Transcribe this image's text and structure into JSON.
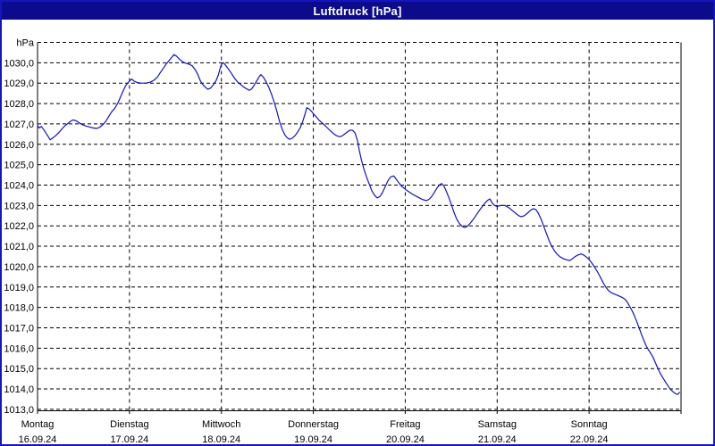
{
  "window": {
    "title": "Luftdruck [hPa]"
  },
  "colors": {
    "window_border": "#1515c0",
    "titlebar_bg": "#0b0b8b",
    "titlebar_text": "#ffffff",
    "plot_bg": "#ffffff",
    "grid": "#000000",
    "axis": "#000000",
    "label_text": "#000000",
    "line": "#1212c4"
  },
  "chart_data": {
    "type": "line",
    "title": "Luftdruck [hPa]",
    "grid": true,
    "legend": "none",
    "y_axis": {
      "unit_label": "hPa",
      "min": 1013,
      "max": 1031,
      "tick_step": 1,
      "tick_labels": [
        "1030,0",
        "1029,0",
        "1028,0",
        "1027,0",
        "1026,0",
        "1025,0",
        "1024,0",
        "1023,0",
        "1022,0",
        "1021,0",
        "1020,0",
        "1019,0",
        "1018,0",
        "1017,0",
        "1016,0",
        "1015,0",
        "1014,0",
        "1013,0"
      ]
    },
    "x_axis": {
      "hours_span": 168,
      "days": [
        {
          "name": "Montag",
          "date": "16.09.24"
        },
        {
          "name": "Dienstag",
          "date": "17.09.24"
        },
        {
          "name": "Mittwoch",
          "date": "18.09.24"
        },
        {
          "name": "Donnerstag",
          "date": "19.09.24"
        },
        {
          "name": "Freitag",
          "date": "20.09.24"
        },
        {
          "name": "Samstag",
          "date": "21.09.24"
        },
        {
          "name": "Sonntag",
          "date": "22.09.24"
        }
      ]
    },
    "series": [
      {
        "name": "Luftdruck",
        "unit": "hPa",
        "points": [
          [
            0,
            1026.92
          ],
          [
            0.5,
            1026.8
          ],
          [
            1,
            1026.88
          ],
          [
            1.7,
            1026.7
          ],
          [
            2.3,
            1026.52
          ],
          [
            2.9,
            1026.35
          ],
          [
            3.3,
            1026.22
          ],
          [
            3.9,
            1026.3
          ],
          [
            4.7,
            1026.42
          ],
          [
            5.5,
            1026.56
          ],
          [
            6.3,
            1026.74
          ],
          [
            7.1,
            1026.9
          ],
          [
            7.9,
            1027.02
          ],
          [
            8.7,
            1027.14
          ],
          [
            9.3,
            1027.2
          ],
          [
            10.1,
            1027.15
          ],
          [
            10.9,
            1027.05
          ],
          [
            11.7,
            1026.96
          ],
          [
            12.6,
            1026.9
          ],
          [
            13.6,
            1026.85
          ],
          [
            14.6,
            1026.8
          ],
          [
            15.5,
            1026.78
          ],
          [
            16.3,
            1026.85
          ],
          [
            17.1,
            1026.97
          ],
          [
            17.9,
            1027.15
          ],
          [
            18.7,
            1027.4
          ],
          [
            19.4,
            1027.6
          ],
          [
            20.1,
            1027.75
          ],
          [
            20.9,
            1028.0
          ],
          [
            21.6,
            1028.3
          ],
          [
            22.3,
            1028.6
          ],
          [
            23,
            1028.88
          ],
          [
            23.6,
            1029.02
          ],
          [
            24.1,
            1029.12
          ],
          [
            24.6,
            1029.2
          ],
          [
            25.2,
            1029.1
          ],
          [
            26,
            1029.03
          ],
          [
            27,
            1029.0
          ],
          [
            28.4,
            1029.0
          ],
          [
            29.6,
            1029.06
          ],
          [
            30.5,
            1029.16
          ],
          [
            31.3,
            1029.3
          ],
          [
            32,
            1029.5
          ],
          [
            32.8,
            1029.72
          ],
          [
            33.5,
            1029.92
          ],
          [
            34.3,
            1030.1
          ],
          [
            35,
            1030.26
          ],
          [
            35.6,
            1030.4
          ],
          [
            36.3,
            1030.32
          ],
          [
            37,
            1030.18
          ],
          [
            37.8,
            1030.06
          ],
          [
            38.6,
            1029.98
          ],
          [
            39.6,
            1029.93
          ],
          [
            40.4,
            1029.85
          ],
          [
            41.1,
            1029.68
          ],
          [
            41.8,
            1029.45
          ],
          [
            42.5,
            1029.12
          ],
          [
            43.2,
            1028.92
          ],
          [
            43.9,
            1028.78
          ],
          [
            44.5,
            1028.7
          ],
          [
            45.2,
            1028.76
          ],
          [
            45.9,
            1028.92
          ],
          [
            46.6,
            1029.12
          ],
          [
            47.2,
            1029.4
          ],
          [
            47.7,
            1029.75
          ],
          [
            48.1,
            1029.95
          ],
          [
            48.5,
            1030.0
          ],
          [
            49,
            1029.9
          ],
          [
            49.8,
            1029.7
          ],
          [
            50.6,
            1029.48
          ],
          [
            51.4,
            1029.25
          ],
          [
            52.2,
            1029.06
          ],
          [
            53,
            1028.94
          ],
          [
            53.9,
            1028.8
          ],
          [
            54.8,
            1028.7
          ],
          [
            55.3,
            1028.65
          ],
          [
            55.9,
            1028.72
          ],
          [
            56.5,
            1028.88
          ],
          [
            57.2,
            1029.1
          ],
          [
            57.9,
            1029.32
          ],
          [
            58.3,
            1029.42
          ],
          [
            59,
            1029.28
          ],
          [
            59.7,
            1029.05
          ],
          [
            60.4,
            1028.78
          ],
          [
            61.1,
            1028.45
          ],
          [
            61.8,
            1028.05
          ],
          [
            62.5,
            1027.6
          ],
          [
            63.2,
            1027.1
          ],
          [
            63.9,
            1026.72
          ],
          [
            64.6,
            1026.45
          ],
          [
            65.2,
            1026.32
          ],
          [
            65.8,
            1026.25
          ],
          [
            66.5,
            1026.3
          ],
          [
            67.2,
            1026.42
          ],
          [
            67.9,
            1026.6
          ],
          [
            68.6,
            1026.82
          ],
          [
            69.2,
            1027.1
          ],
          [
            69.8,
            1027.45
          ],
          [
            70.3,
            1027.8
          ],
          [
            71,
            1027.72
          ],
          [
            71.6,
            1027.6
          ],
          [
            72,
            1027.5
          ],
          [
            72.7,
            1027.36
          ],
          [
            73.4,
            1027.2
          ],
          [
            74.1,
            1027.08
          ],
          [
            74.9,
            1026.95
          ],
          [
            75.7,
            1026.8
          ],
          [
            76.5,
            1026.65
          ],
          [
            77.3,
            1026.52
          ],
          [
            78.1,
            1026.42
          ],
          [
            78.9,
            1026.37
          ],
          [
            79.6,
            1026.42
          ],
          [
            80.3,
            1026.52
          ],
          [
            81,
            1026.62
          ],
          [
            81.6,
            1026.7
          ],
          [
            82.3,
            1026.68
          ],
          [
            82.9,
            1026.55
          ],
          [
            83.5,
            1026.2
          ],
          [
            84,
            1025.7
          ],
          [
            84.6,
            1025.2
          ],
          [
            85.2,
            1024.8
          ],
          [
            85.9,
            1024.4
          ],
          [
            86.6,
            1024.05
          ],
          [
            87.3,
            1023.72
          ],
          [
            88,
            1023.5
          ],
          [
            88.7,
            1023.37
          ],
          [
            89.4,
            1023.44
          ],
          [
            90.1,
            1023.65
          ],
          [
            90.8,
            1023.93
          ],
          [
            91.5,
            1024.22
          ],
          [
            92.2,
            1024.4
          ],
          [
            93,
            1024.45
          ],
          [
            93.6,
            1024.3
          ],
          [
            94.3,
            1024.12
          ],
          [
            95,
            1023.95
          ],
          [
            95.7,
            1023.85
          ],
          [
            96.4,
            1023.74
          ],
          [
            97.2,
            1023.64
          ],
          [
            98,
            1023.54
          ],
          [
            98.8,
            1023.46
          ],
          [
            99.6,
            1023.38
          ],
          [
            100.4,
            1023.3
          ],
          [
            101.5,
            1023.24
          ],
          [
            102.2,
            1023.3
          ],
          [
            102.9,
            1023.44
          ],
          [
            103.6,
            1023.64
          ],
          [
            104.3,
            1023.86
          ],
          [
            105,
            1024.02
          ],
          [
            105.5,
            1024.08
          ],
          [
            106.1,
            1023.95
          ],
          [
            106.7,
            1023.7
          ],
          [
            107.4,
            1023.38
          ],
          [
            108.1,
            1023.0
          ],
          [
            108.8,
            1022.62
          ],
          [
            109.5,
            1022.3
          ],
          [
            110.2,
            1022.1
          ],
          [
            110.9,
            1021.97
          ],
          [
            111.5,
            1021.92
          ],
          [
            112.2,
            1021.98
          ],
          [
            112.9,
            1022.12
          ],
          [
            113.7,
            1022.3
          ],
          [
            114.5,
            1022.52
          ],
          [
            115.3,
            1022.74
          ],
          [
            116.1,
            1022.95
          ],
          [
            116.8,
            1023.12
          ],
          [
            117.5,
            1023.25
          ],
          [
            118.1,
            1023.32
          ],
          [
            118.7,
            1023.12
          ],
          [
            119.3,
            1023.0
          ],
          [
            120,
            1022.95
          ],
          [
            120.9,
            1023.0
          ],
          [
            122,
            1023.0
          ],
          [
            123,
            1022.9
          ],
          [
            123.9,
            1022.76
          ],
          [
            124.8,
            1022.62
          ],
          [
            125.6,
            1022.5
          ],
          [
            126.3,
            1022.45
          ],
          [
            127.1,
            1022.5
          ],
          [
            127.9,
            1022.62
          ],
          [
            128.7,
            1022.76
          ],
          [
            129.4,
            1022.84
          ],
          [
            130.1,
            1022.8
          ],
          [
            130.8,
            1022.6
          ],
          [
            131.5,
            1022.3
          ],
          [
            132.2,
            1021.95
          ],
          [
            132.9,
            1021.6
          ],
          [
            133.6,
            1021.25
          ],
          [
            134.3,
            1020.98
          ],
          [
            135,
            1020.76
          ],
          [
            135.7,
            1020.6
          ],
          [
            136.4,
            1020.48
          ],
          [
            137.2,
            1020.4
          ],
          [
            138,
            1020.34
          ],
          [
            138.9,
            1020.3
          ],
          [
            139.6,
            1020.38
          ],
          [
            140.4,
            1020.5
          ],
          [
            141.2,
            1020.58
          ],
          [
            141.9,
            1020.62
          ],
          [
            142.6,
            1020.57
          ],
          [
            143.3,
            1020.47
          ],
          [
            144,
            1020.35
          ],
          [
            144.8,
            1020.15
          ],
          [
            145.5,
            1019.95
          ],
          [
            146.2,
            1019.74
          ],
          [
            147,
            1019.46
          ],
          [
            147.7,
            1019.2
          ],
          [
            148.4,
            1018.98
          ],
          [
            149.1,
            1018.82
          ],
          [
            149.8,
            1018.72
          ],
          [
            150.7,
            1018.65
          ],
          [
            151.6,
            1018.58
          ],
          [
            152.5,
            1018.5
          ],
          [
            153.4,
            1018.4
          ],
          [
            154,
            1018.25
          ],
          [
            154.6,
            1018.05
          ],
          [
            155.2,
            1017.85
          ],
          [
            155.8,
            1017.6
          ],
          [
            156.4,
            1017.32
          ],
          [
            157,
            1017.02
          ],
          [
            157.6,
            1016.72
          ],
          [
            158.2,
            1016.42
          ],
          [
            158.8,
            1016.15
          ],
          [
            159.4,
            1015.95
          ],
          [
            160,
            1015.78
          ],
          [
            160.7,
            1015.55
          ],
          [
            161.4,
            1015.25
          ],
          [
            162,
            1014.98
          ],
          [
            162.7,
            1014.72
          ],
          [
            163.4,
            1014.5
          ],
          [
            164,
            1014.32
          ],
          [
            164.7,
            1014.12
          ],
          [
            165.3,
            1013.97
          ],
          [
            165.9,
            1013.86
          ],
          [
            166.5,
            1013.78
          ],
          [
            167,
            1013.73
          ],
          [
            167.4,
            1013.78
          ],
          [
            167.6,
            1013.84
          ]
        ]
      }
    ]
  }
}
